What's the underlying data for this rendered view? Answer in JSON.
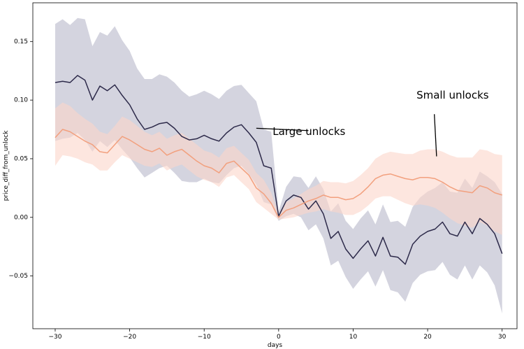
{
  "chart_data": {
    "type": "line",
    "title": "",
    "xlabel": "days",
    "ylabel": "price_diff_from_unlock",
    "xlim": [
      -33,
      32
    ],
    "ylim": [
      -0.095,
      0.183
    ],
    "x_ticks": [
      -30,
      -20,
      -10,
      0,
      10,
      20,
      30
    ],
    "x_tick_labels": [
      "−30",
      "−20",
      "−10",
      "0",
      "10",
      "20",
      "30"
    ],
    "y_ticks": [
      -0.05,
      0.0,
      0.05,
      0.1,
      0.15
    ],
    "y_tick_labels": [
      "−0.05",
      "0.00",
      "0.05",
      "0.10",
      "0.15"
    ],
    "grid": false,
    "x": [
      -30,
      -29,
      -28,
      -27,
      -26,
      -25,
      -24,
      -23,
      -22,
      -21,
      -20,
      -19,
      -18,
      -17,
      -16,
      -15,
      -14,
      -13,
      -12,
      -11,
      -10,
      -9,
      -8,
      -7,
      -6,
      -5,
      -4,
      -3,
      -2,
      -1,
      0,
      1,
      2,
      3,
      4,
      5,
      6,
      7,
      8,
      9,
      10,
      11,
      12,
      13,
      14,
      15,
      16,
      17,
      18,
      19,
      20,
      21,
      22,
      23,
      24,
      25,
      26,
      27,
      28,
      29,
      30
    ],
    "series": [
      {
        "key": "large",
        "color": "#2d2a4a",
        "band_color": "#b8b7c9",
        "values": [
          0.115,
          0.116,
          0.115,
          0.121,
          0.117,
          0.1,
          0.112,
          0.108,
          0.113,
          0.104,
          0.096,
          0.084,
          0.075,
          0.077,
          0.08,
          0.081,
          0.076,
          0.069,
          0.066,
          0.067,
          0.07,
          0.067,
          0.065,
          0.072,
          0.077,
          0.079,
          0.072,
          0.064,
          0.044,
          0.042,
          0.001,
          0.014,
          0.019,
          0.017,
          0.007,
          0.014,
          0.003,
          -0.018,
          -0.012,
          -0.027,
          -0.035,
          -0.027,
          -0.02,
          -0.033,
          -0.017,
          -0.033,
          -0.034,
          -0.04,
          -0.023,
          -0.016,
          -0.012,
          -0.01,
          -0.004,
          -0.014,
          -0.016,
          -0.004,
          -0.014,
          -0.001,
          -0.006,
          -0.014,
          -0.031
        ],
        "lower": [
          0.065,
          0.067,
          0.068,
          0.072,
          0.066,
          0.056,
          0.065,
          0.06,
          0.066,
          0.058,
          0.051,
          0.042,
          0.034,
          0.038,
          0.042,
          0.044,
          0.038,
          0.031,
          0.03,
          0.03,
          0.033,
          0.03,
          0.029,
          0.036,
          0.042,
          0.044,
          0.037,
          0.028,
          0.013,
          0.011,
          -0.003,
          0.001,
          0.003,
          0.0,
          -0.011,
          -0.006,
          -0.018,
          -0.041,
          -0.037,
          -0.051,
          -0.061,
          -0.053,
          -0.046,
          -0.059,
          -0.045,
          -0.062,
          -0.064,
          -0.072,
          -0.056,
          -0.049,
          -0.046,
          -0.045,
          -0.038,
          -0.049,
          -0.053,
          -0.041,
          -0.053,
          -0.041,
          -0.047,
          -0.058,
          -0.082
        ],
        "upper": [
          0.165,
          0.169,
          0.164,
          0.17,
          0.169,
          0.146,
          0.158,
          0.155,
          0.163,
          0.151,
          0.142,
          0.127,
          0.118,
          0.118,
          0.122,
          0.12,
          0.115,
          0.108,
          0.103,
          0.105,
          0.108,
          0.105,
          0.101,
          0.108,
          0.112,
          0.113,
          0.106,
          0.099,
          0.075,
          0.073,
          0.005,
          0.026,
          0.035,
          0.034,
          0.025,
          0.035,
          0.024,
          0.005,
          0.012,
          -0.003,
          -0.01,
          -0.001,
          0.006,
          -0.006,
          0.011,
          -0.004,
          -0.003,
          -0.008,
          0.009,
          0.017,
          0.022,
          0.025,
          0.03,
          0.022,
          0.021,
          0.033,
          0.025,
          0.039,
          0.035,
          0.03,
          0.02
        ]
      },
      {
        "key": "small",
        "color": "#f2a07e",
        "band_color": "#fcd5c9",
        "values": [
          0.068,
          0.075,
          0.073,
          0.069,
          0.065,
          0.062,
          0.056,
          0.055,
          0.062,
          0.069,
          0.066,
          0.062,
          0.058,
          0.056,
          0.059,
          0.053,
          0.056,
          0.058,
          0.053,
          0.048,
          0.044,
          0.042,
          0.038,
          0.046,
          0.048,
          0.042,
          0.036,
          0.025,
          0.02,
          0.012,
          0.0,
          0.006,
          0.008,
          0.011,
          0.014,
          0.016,
          0.019,
          0.017,
          0.017,
          0.015,
          0.016,
          0.02,
          0.026,
          0.033,
          0.036,
          0.037,
          0.035,
          0.033,
          0.032,
          0.034,
          0.034,
          0.033,
          0.03,
          0.026,
          0.023,
          0.022,
          0.021,
          0.027,
          0.025,
          0.021,
          0.019
        ],
        "lower": [
          0.044,
          0.053,
          0.052,
          0.05,
          0.047,
          0.045,
          0.04,
          0.04,
          0.047,
          0.053,
          0.05,
          0.047,
          0.044,
          0.043,
          0.046,
          0.04,
          0.043,
          0.045,
          0.04,
          0.035,
          0.032,
          0.03,
          0.026,
          0.034,
          0.036,
          0.03,
          0.024,
          0.013,
          0.008,
          0.003,
          -0.002,
          -0.001,
          0.0,
          0.002,
          0.004,
          0.005,
          0.007,
          0.005,
          0.004,
          0.002,
          0.002,
          0.005,
          0.01,
          0.016,
          0.018,
          0.018,
          0.015,
          0.012,
          0.01,
          0.011,
          0.01,
          0.008,
          0.004,
          -0.001,
          -0.005,
          -0.007,
          -0.009,
          -0.004,
          -0.007,
          -0.012,
          -0.015
        ],
        "upper": [
          0.093,
          0.098,
          0.095,
          0.089,
          0.084,
          0.08,
          0.073,
          0.071,
          0.078,
          0.086,
          0.083,
          0.078,
          0.073,
          0.07,
          0.073,
          0.067,
          0.07,
          0.072,
          0.067,
          0.062,
          0.057,
          0.055,
          0.051,
          0.059,
          0.061,
          0.055,
          0.049,
          0.038,
          0.032,
          0.021,
          0.002,
          0.013,
          0.016,
          0.02,
          0.024,
          0.027,
          0.031,
          0.03,
          0.03,
          0.029,
          0.031,
          0.036,
          0.042,
          0.05,
          0.054,
          0.056,
          0.055,
          0.054,
          0.054,
          0.057,
          0.058,
          0.058,
          0.056,
          0.053,
          0.051,
          0.051,
          0.051,
          0.058,
          0.057,
          0.054,
          0.053
        ]
      }
    ],
    "annotations": [
      {
        "text": "Large unlocks",
        "text_x": -0.8,
        "text_y": 0.073,
        "line_from": [
          -3,
          0.076
        ],
        "line_to": [
          4,
          0.074
        ]
      },
      {
        "text": "Small unlocks",
        "text_x": 18.5,
        "text_y": 0.104,
        "line_from": [
          20.9,
          0.088
        ],
        "line_to": [
          21.2,
          0.052
        ]
      }
    ]
  }
}
